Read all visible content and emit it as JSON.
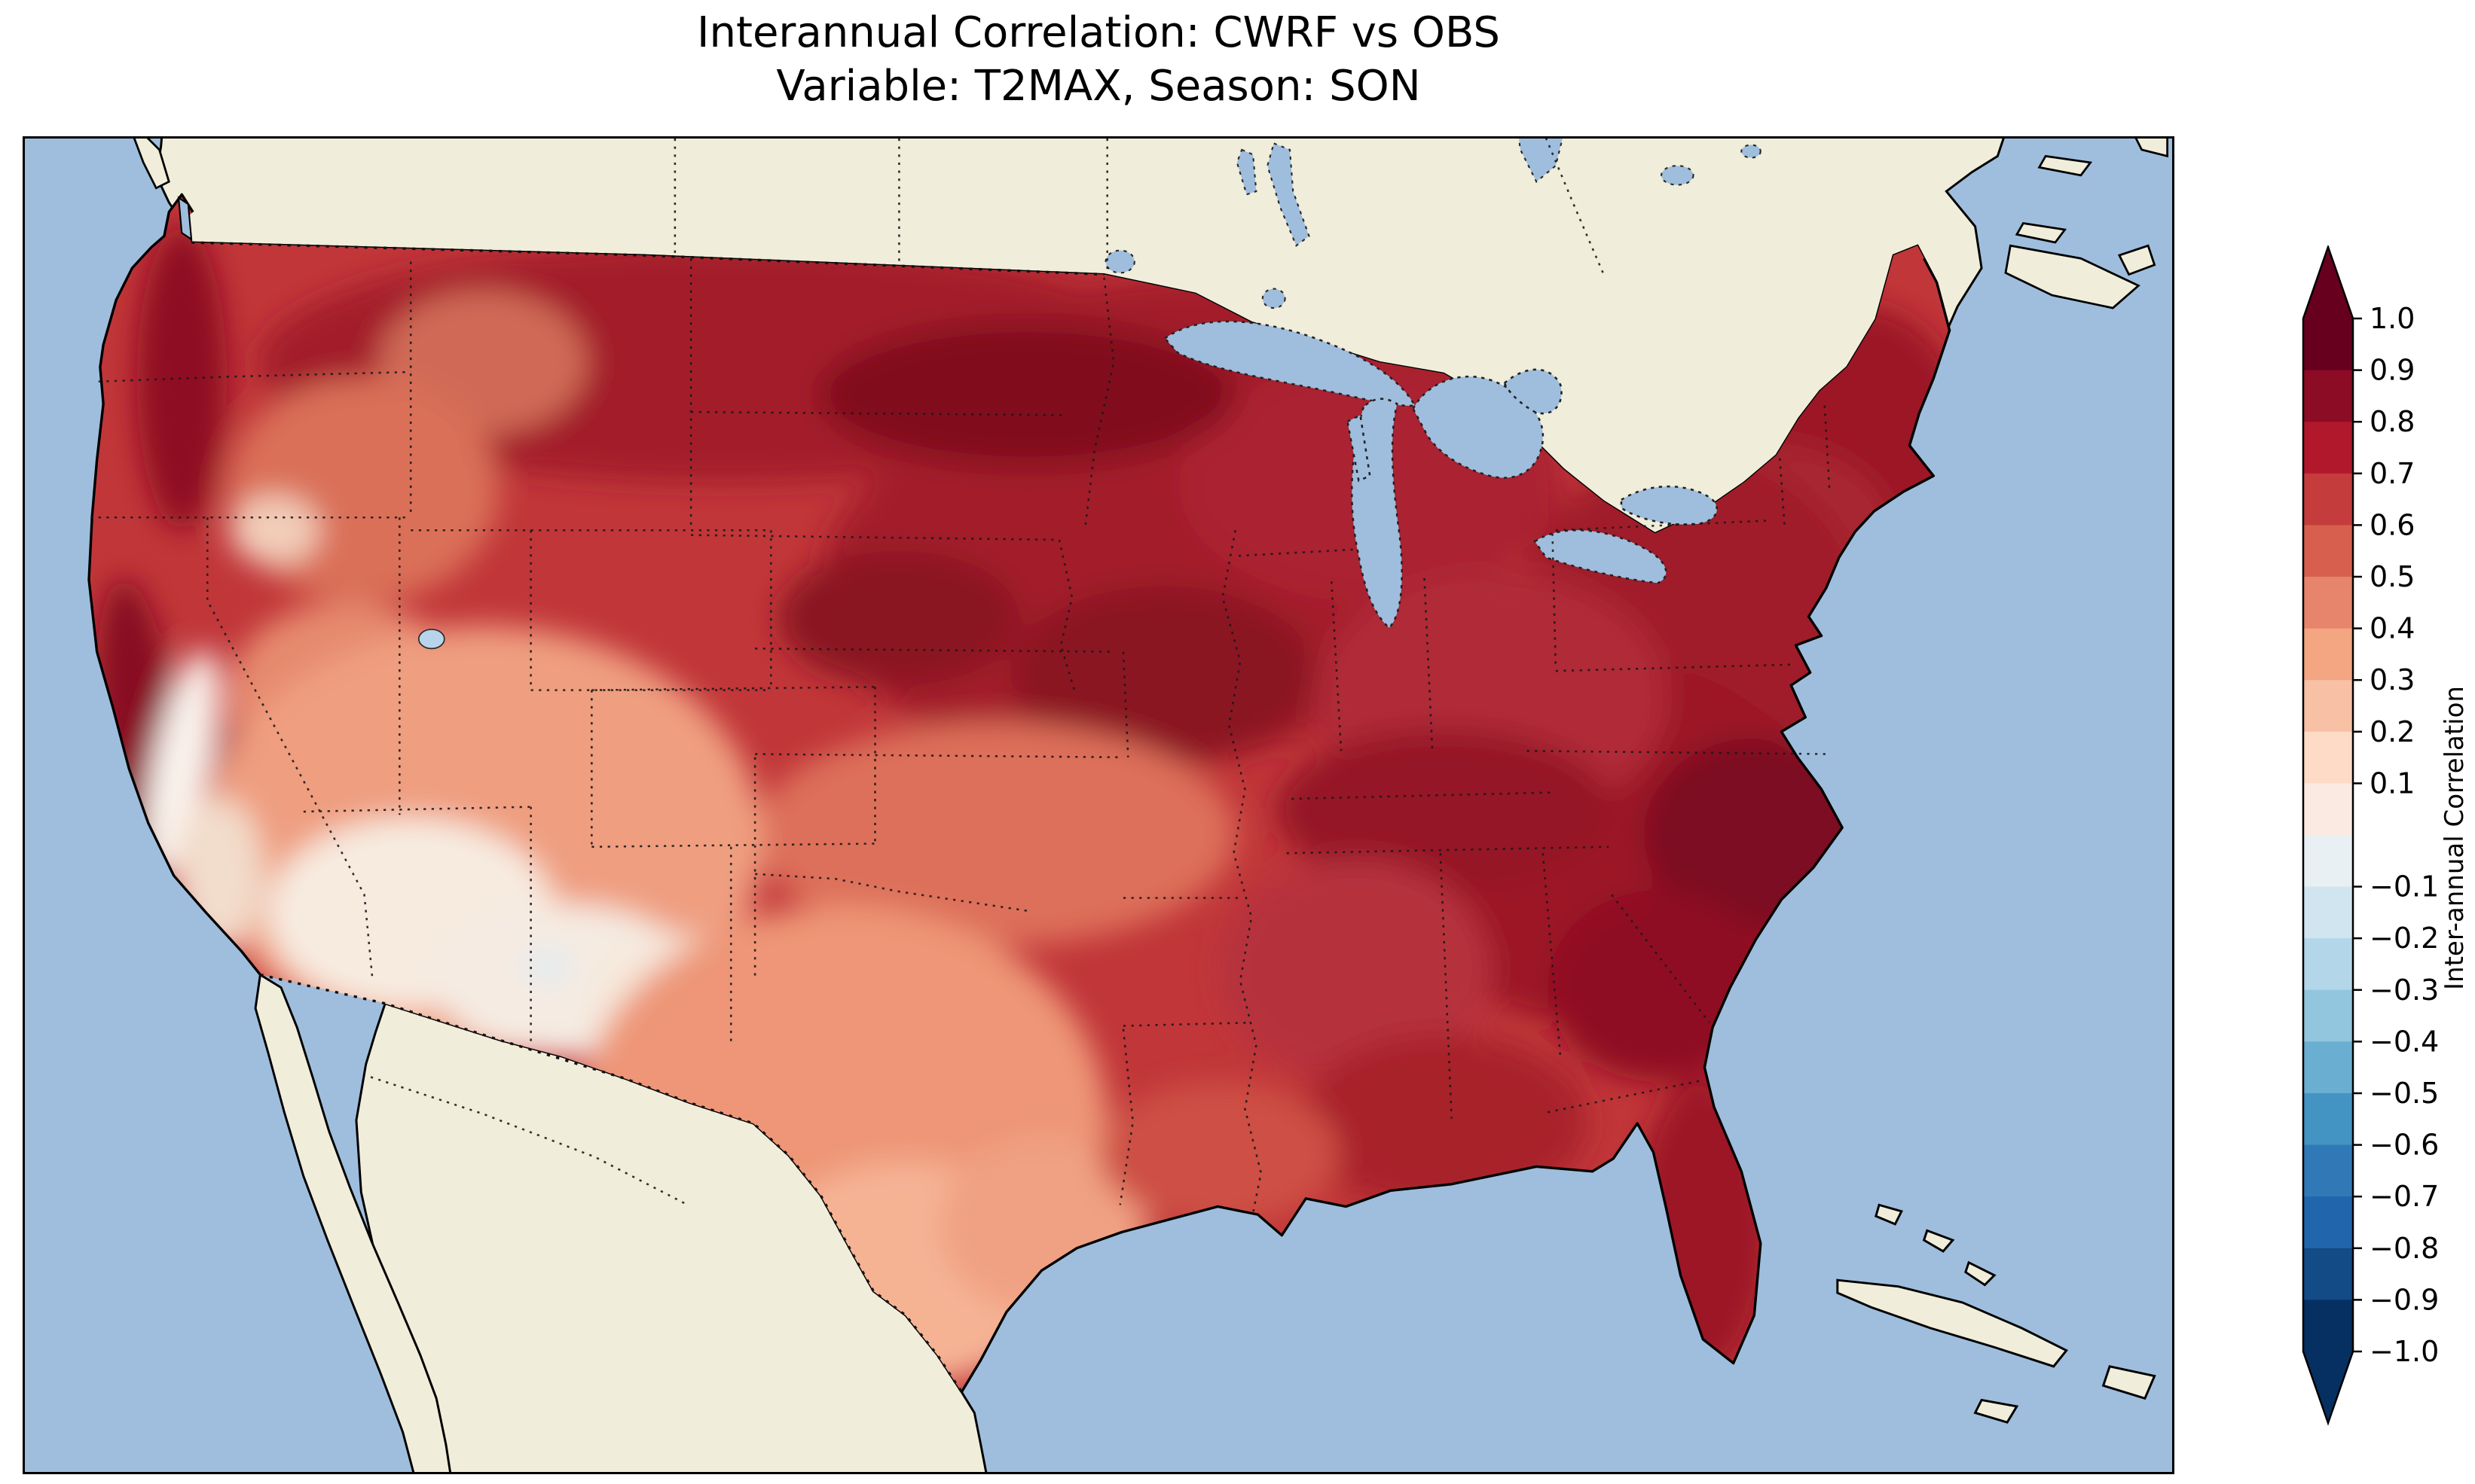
{
  "title": {
    "line1": "Interannual Correlation: CWRF vs OBS",
    "line2": "Variable: T2MAX, Season: SON"
  },
  "palette": {
    "ocean": "#9fbede",
    "land": "#f0edda",
    "coastline": "#000000",
    "strong_positive": "#67001f",
    "strong_negative": "#053061",
    "near_zero": "#f7f7f7"
  },
  "colorbar": {
    "label": "Inter-annual Correlation",
    "tick_labels": [
      "1.0",
      "0.9",
      "0.8",
      "0.7",
      "0.6",
      "0.5",
      "0.4",
      "0.3",
      "0.2",
      "0.1",
      "−0.1",
      "−0.2",
      "−0.3",
      "−0.4",
      "−0.5",
      "−0.6",
      "−0.7",
      "−0.8",
      "−0.9",
      "−1.0"
    ],
    "segments": [
      "#67001f",
      "#8c0b25",
      "#b2182b",
      "#c43c3c",
      "#d6604d",
      "#e6846c",
      "#f4a582",
      "#f8c0a4",
      "#fddbc7",
      "#fbeae1",
      "#e9f0f4",
      "#d1e5f0",
      "#b3d6e8",
      "#92c5de",
      "#6aaed1",
      "#4393c3",
      "#3079b6",
      "#2166ac",
      "#134b87",
      "#053061"
    ],
    "over_color": "#67001f",
    "under_color": "#053061"
  },
  "chart_data": {
    "type": "heatmap",
    "subtype": "filled-contour-geographic-map",
    "title": "Interannual Correlation: CWRF vs OBS",
    "subtitle": "Variable: T2MAX, Season: SON",
    "model": "CWRF",
    "reference": "OBS",
    "variable": "T2MAX",
    "season": "SON",
    "region": "Continental United States with surrounding Canada, Mexico, Gulf of Mexico and Caribbean",
    "colormap": "RdBu_r (dark blue = -1, white = 0, dark red = +1)",
    "value_range": [
      -1.0,
      1.0
    ],
    "contour_interval": 0.1,
    "colorbar_label": "Inter-annual Correlation",
    "colorbar_ticks": [
      1.0,
      0.9,
      0.8,
      0.7,
      0.6,
      0.5,
      0.4,
      0.3,
      0.2,
      0.1,
      -0.1,
      -0.2,
      -0.3,
      -0.4,
      -0.5,
      -0.6,
      -0.7,
      -0.8,
      -0.9,
      -1.0
    ],
    "colorbar_extend": "both",
    "approx_regional_values": {
      "Pacific Northwest coast": 0.8,
      "Interior Oregon and Idaho": 0.6,
      "Northern California coast and Sierra Nevada": 0.85,
      "California Central Valley": 0.05,
      "Great Basin Nevada Utah": 0.45,
      "Desert Southwest S Nevada Arizona": 0.1,
      "New Mexico and far west Texas": 0.05,
      "Montana Dakotas northern plains": 0.85,
      "Upper Midwest Minnesota Iowa Wisconsin": 0.9,
      "Central plains Nebraska Kansas": 0.75,
      "Texas interior": 0.45,
      "South Texas": 0.3,
      "Gulf coast Louisiana": 0.6,
      "Ohio Valley": 0.75,
      "Tennessee Kentucky": 0.85,
      "Northeast New England": 0.85,
      "Mid-Atlantic Virginia Carolinas": 0.9,
      "Georgia Southeast coast": 0.9,
      "Florida peninsula": 0.85,
      "Isolated specks New Mexico west Texas": -0.1
    },
    "notes": "Correlation is 0.6 or greater over most of CONUS (deep red); a weak band near zero (white) runs through the California Central Valley and the Desert Southwest into far-west Texas; no large negative regions."
  }
}
